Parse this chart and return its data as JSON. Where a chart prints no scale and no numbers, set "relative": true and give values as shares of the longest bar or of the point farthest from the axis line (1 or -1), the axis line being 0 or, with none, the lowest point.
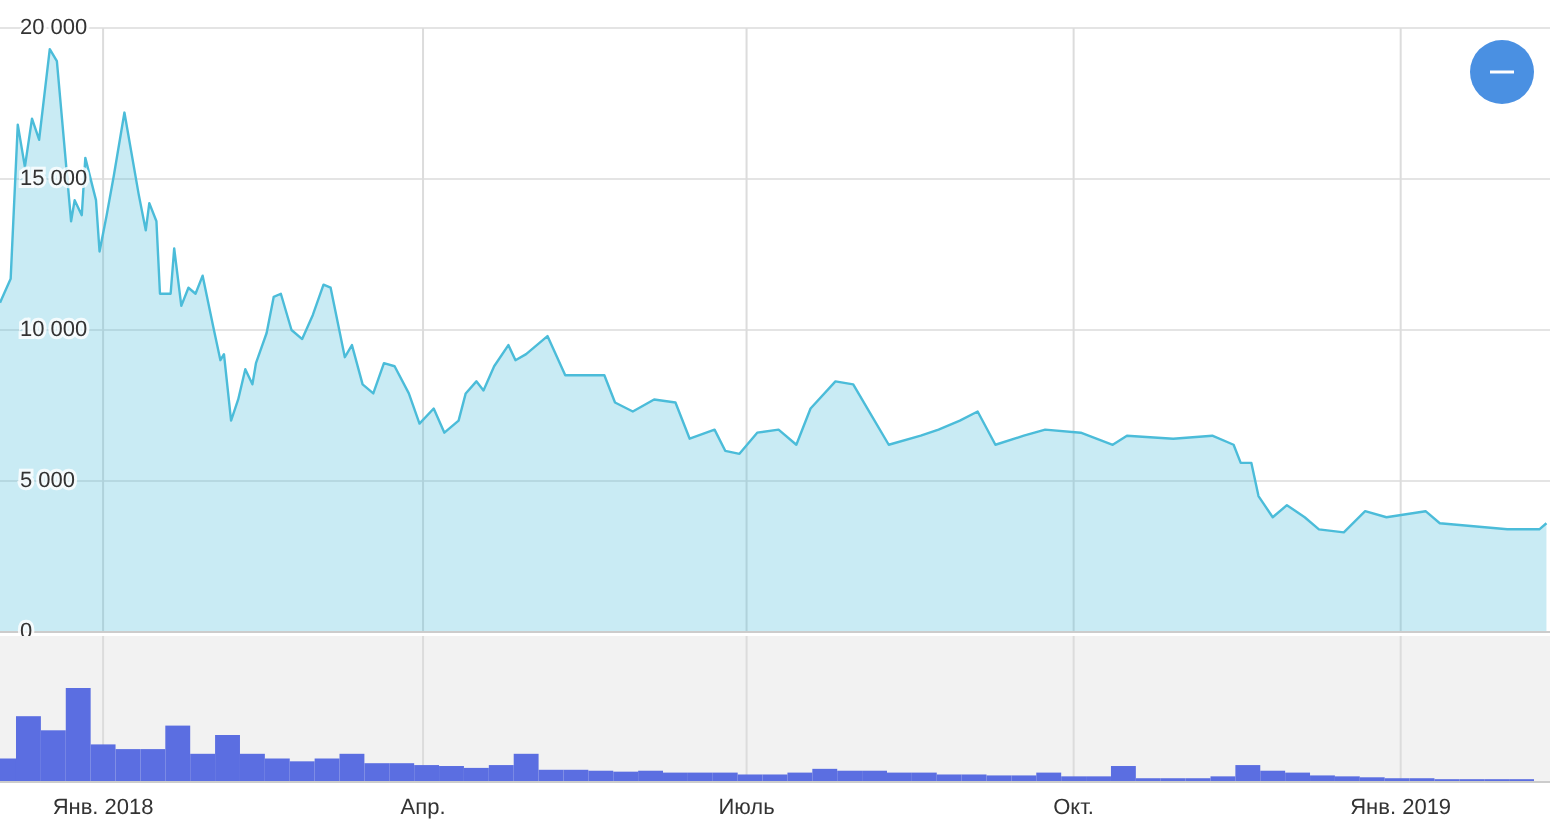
{
  "chart_data": [
    {
      "type": "area",
      "tick_labels": "y",
      "grid": true,
      "xlim": [
        "2017-12-03",
        "2019-02-12"
      ],
      "xticks": [
        {
          "value": "2018-01-01",
          "label": null
        },
        {
          "value": "2018-04-01",
          "label": null
        },
        {
          "value": "2018-07-01",
          "label": null
        },
        {
          "value": "2018-10-01",
          "label": null
        },
        {
          "value": "2019-01-01",
          "label": null
        }
      ],
      "ylim": [
        0,
        20000
      ],
      "yticks": [
        {
          "value": 0,
          "label": "0"
        },
        {
          "value": 5000,
          "label": "5 000"
        },
        {
          "value": 10000,
          "label": "10 000"
        },
        {
          "value": 15000,
          "label": "15 000"
        },
        {
          "value": 20000,
          "label": "20 000"
        }
      ],
      "series": [
        {
          "color": "#4bbcd9",
          "x": [
            "2017-12-03",
            "2017-12-06",
            "2017-12-08",
            "2017-12-10",
            "2017-12-12",
            "2017-12-14",
            "2017-12-17",
            "2017-12-19",
            "2017-12-23",
            "2017-12-24",
            "2017-12-26",
            "2017-12-27",
            "2017-12-30",
            "2017-12-31",
            "2018-01-02",
            "2018-01-04",
            "2018-01-07",
            "2018-01-11",
            "2018-01-13",
            "2018-01-14",
            "2018-01-16",
            "2018-01-17",
            "2018-01-20",
            "2018-01-21",
            "2018-01-23",
            "2018-01-25",
            "2018-01-27",
            "2018-01-29",
            "2018-02-01",
            "2018-02-03",
            "2018-02-04",
            "2018-02-06",
            "2018-02-08",
            "2018-02-10",
            "2018-02-12",
            "2018-02-13",
            "2018-02-16",
            "2018-02-18",
            "2018-02-20",
            "2018-02-23",
            "2018-02-26",
            "2018-03-01",
            "2018-03-04",
            "2018-03-06",
            "2018-03-10",
            "2018-03-12",
            "2018-03-15",
            "2018-03-18",
            "2018-03-21",
            "2018-03-24",
            "2018-03-28",
            "2018-03-31",
            "2018-04-04",
            "2018-04-07",
            "2018-04-11",
            "2018-04-13",
            "2018-04-16",
            "2018-04-18",
            "2018-04-21",
            "2018-04-25",
            "2018-04-27",
            "2018-04-30",
            "2018-05-06",
            "2018-05-11",
            "2018-05-22",
            "2018-05-25",
            "2018-05-30",
            "2018-06-05",
            "2018-06-11",
            "2018-06-15",
            "2018-06-22",
            "2018-06-25",
            "2018-06-29",
            "2018-07-04",
            "2018-07-10",
            "2018-07-15",
            "2018-07-19",
            "2018-07-26",
            "2018-07-31",
            "2018-08-05",
            "2018-08-10",
            "2018-08-19",
            "2018-08-24",
            "2018-08-30",
            "2018-09-04",
            "2018-09-09",
            "2018-09-17",
            "2018-09-23",
            "2018-10-03",
            "2018-10-12",
            "2018-10-16",
            "2018-10-29",
            "2018-11-09",
            "2018-11-15",
            "2018-11-17",
            "2018-11-20",
            "2018-11-22",
            "2018-11-26",
            "2018-11-30",
            "2018-12-05",
            "2018-12-09",
            "2018-12-16",
            "2018-12-22",
            "2018-12-28",
            "2019-01-08",
            "2019-01-12",
            "2019-01-31",
            "2019-02-09",
            "2019-02-11"
          ],
          "values": [
            10900,
            11700,
            16800,
            15400,
            17000,
            16300,
            19300,
            18900,
            13600,
            14300,
            13800,
            15700,
            14300,
            12600,
            13800,
            15100,
            17200,
            14500,
            13300,
            14200,
            13600,
            11200,
            11200,
            12700,
            10800,
            11400,
            11200,
            11800,
            10100,
            9000,
            9200,
            7000,
            7700,
            8700,
            8200,
            8900,
            9900,
            11100,
            11200,
            10000,
            9700,
            10500,
            11500,
            11400,
            9100,
            9500,
            8200,
            7900,
            8900,
            8800,
            7900,
            6900,
            7400,
            6600,
            7000,
            7900,
            8300,
            8000,
            8800,
            9500,
            9000,
            9200,
            9800,
            8500,
            8500,
            7600,
            7300,
            7700,
            7600,
            6400,
            6700,
            6000,
            5900,
            6600,
            6700,
            6200,
            7400,
            8300,
            8200,
            7200,
            6200,
            6500,
            6700,
            7000,
            7300,
            6200,
            6500,
            6700,
            6600,
            6200,
            6500,
            6400,
            6500,
            6200,
            5600,
            5600,
            4500,
            3800,
            4200,
            3800,
            3400,
            3300,
            4000,
            3800,
            4000,
            3600,
            3400,
            3400,
            3600
          ]
        }
      ]
    },
    {
      "type": "bar",
      "relative": true,
      "tick_labels": "x",
      "grid": "x",
      "xlim": [
        "2017-12-03",
        "2019-02-12"
      ],
      "xticks": [
        {
          "value": "2018-01-01",
          "label": "Янв. 2018"
        },
        {
          "value": "2018-04-01",
          "label": "Апр."
        },
        {
          "value": "2018-07-01",
          "label": "Июль"
        },
        {
          "value": "2018-10-01",
          "label": "Окт."
        },
        {
          "value": "2019-01-01",
          "label": "Янв. 2019"
        }
      ],
      "series": [
        {
          "color": "#5b6ee1",
          "x": [
            "2017-12-04",
            "2017-12-11",
            "2017-12-18",
            "2017-12-25",
            "2018-01-01",
            "2018-01-08",
            "2018-01-15",
            "2018-01-22",
            "2018-01-29",
            "2018-02-05",
            "2018-02-12",
            "2018-02-19",
            "2018-02-26",
            "2018-03-05",
            "2018-03-12",
            "2018-03-19",
            "2018-03-26",
            "2018-04-02",
            "2018-04-09",
            "2018-04-16",
            "2018-04-23",
            "2018-04-30",
            "2018-05-07",
            "2018-05-14",
            "2018-05-21",
            "2018-05-28",
            "2018-06-04",
            "2018-06-11",
            "2018-06-18",
            "2018-06-25",
            "2018-07-02",
            "2018-07-09",
            "2018-07-16",
            "2018-07-23",
            "2018-07-30",
            "2018-08-06",
            "2018-08-13",
            "2018-08-20",
            "2018-08-27",
            "2018-09-03",
            "2018-09-10",
            "2018-09-17",
            "2018-09-24",
            "2018-10-01",
            "2018-10-08",
            "2018-10-15",
            "2018-10-22",
            "2018-10-29",
            "2018-11-05",
            "2018-11-12",
            "2018-11-19",
            "2018-11-26",
            "2018-12-03",
            "2018-12-10",
            "2018-12-17",
            "2018-12-24",
            "2018-12-31",
            "2019-01-07",
            "2019-01-14",
            "2019-01-21",
            "2019-01-28",
            "2019-02-04"
          ],
          "values": [
            0.25,
            0.7,
            0.55,
            1,
            0.4,
            0.35,
            0.35,
            0.6,
            0.3,
            0.5,
            0.3,
            0.25,
            0.22,
            0.25,
            0.3,
            0.2,
            0.2,
            0.18,
            0.17,
            0.15,
            0.18,
            0.3,
            0.13,
            0.13,
            0.12,
            0.11,
            0.12,
            0.1,
            0.1,
            0.1,
            0.08,
            0.08,
            0.1,
            0.14,
            0.12,
            0.12,
            0.1,
            0.1,
            0.08,
            0.08,
            0.07,
            0.07,
            0.1,
            0.06,
            0.06,
            0.17,
            0.04,
            0.04,
            0.04,
            0.06,
            0.18,
            0.12,
            0.1,
            0.07,
            0.06,
            0.05,
            0.04,
            0.04,
            0.03,
            0.03,
            0.03,
            0.03
          ]
        }
      ]
    }
  ]
}
